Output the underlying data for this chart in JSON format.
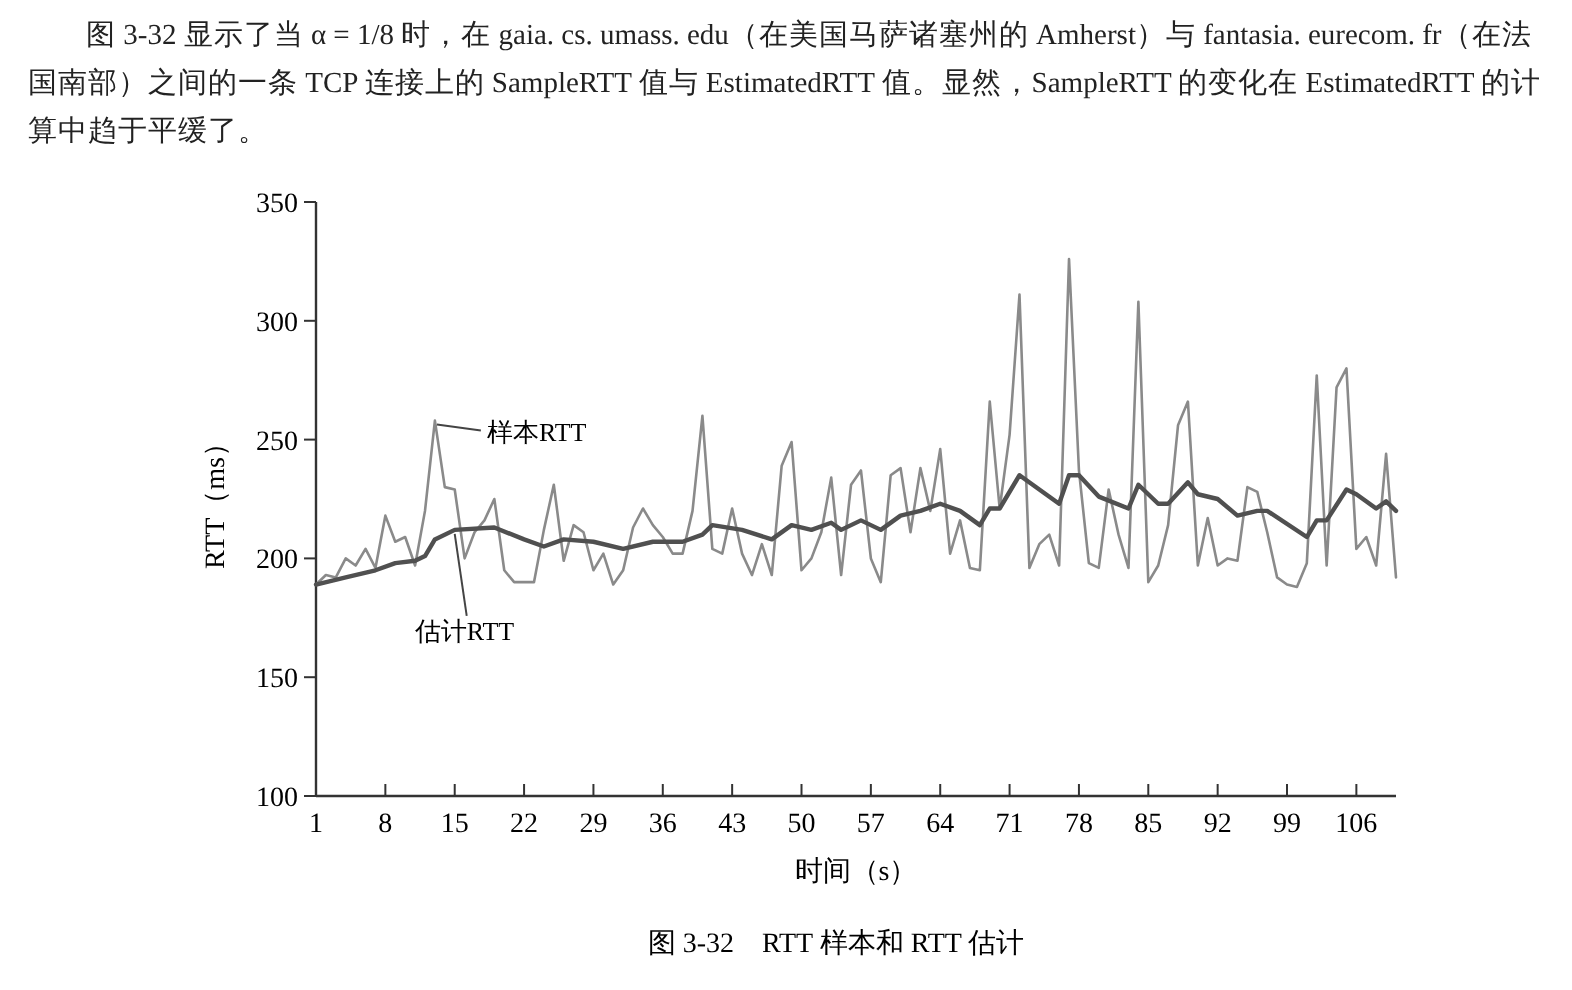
{
  "chart_data": {
    "type": "line",
    "title": "图 3-32　RTT 样本和 RTT 估计",
    "xlabel": "时间（s）",
    "ylabel": "RTT（ms）",
    "annotations": [
      "图 3-32 显示了当 α = 1/8 时，在 gaia. cs. umass. edu（在美国马萨诸塞州的 Amherst）与 fantasia. eurecom. fr（在法国南部）之间的一条 TCP 连接上的 SampleRTT 值与 EstimatedRTT 值。显然，SampleRTT 的变化在 EstimatedRTT 的计算中趋于平缓了。",
      {
        "text": "样本RTT",
        "x": 13,
        "y": 258
      },
      {
        "text": "估计RTT",
        "x": 15,
        "y": 212
      }
    ],
    "series": [
      {
        "color": "#8a8a8a",
        "x": [
          1,
          2,
          3,
          4,
          5,
          6,
          7,
          8,
          9,
          10,
          11,
          12,
          13,
          14,
          15,
          16,
          17,
          18,
          19,
          20,
          21,
          22,
          23,
          24,
          25,
          26,
          27,
          28,
          29,
          30,
          31,
          32,
          33,
          34,
          35,
          36,
          37,
          38,
          39,
          40,
          41,
          42,
          43,
          44,
          45,
          46,
          47,
          48,
          49,
          50,
          51,
          52,
          53,
          54,
          55,
          56,
          57,
          58,
          59,
          60,
          61,
          62,
          63,
          64,
          65,
          66,
          67,
          68,
          69,
          70,
          71,
          72,
          73,
          74,
          75,
          76,
          77,
          78,
          79,
          80,
          81,
          82,
          83,
          84,
          85,
          86,
          87,
          88,
          89,
          90,
          91,
          92,
          93,
          94,
          95,
          96,
          97,
          98,
          99,
          100,
          101,
          102,
          103,
          104,
          105,
          106,
          107,
          108,
          109,
          110
        ],
        "values": [
          189,
          193,
          192,
          200,
          197,
          204,
          196,
          218,
          207,
          209,
          197,
          220,
          258,
          230,
          229,
          200,
          211,
          216,
          225,
          195,
          190,
          190,
          190,
          212,
          231,
          199,
          214,
          211,
          195,
          202,
          189,
          195,
          213,
          221,
          214,
          209,
          202,
          202,
          220,
          260,
          204,
          202,
          221,
          202,
          193,
          206,
          193,
          239,
          249,
          195,
          200,
          211,
          234,
          193,
          231,
          237,
          200,
          190,
          235,
          238,
          211,
          238,
          220,
          246,
          202,
          216,
          196,
          195,
          266,
          221,
          252,
          311,
          196,
          206,
          210,
          197,
          326,
          237,
          198,
          196,
          229,
          210,
          196,
          308,
          190,
          197,
          214,
          256,
          266,
          197,
          217,
          197,
          200,
          199,
          230,
          228,
          211,
          192,
          189,
          188,
          198,
          277,
          197,
          272,
          280,
          204,
          209,
          197,
          244,
          192
        ]
      },
      {
        "color": "#505050",
        "x": [
          1,
          4,
          7,
          9,
          11,
          12,
          13,
          15,
          19,
          22,
          24,
          26,
          29,
          32,
          35,
          38,
          40,
          41,
          44,
          47,
          49,
          51,
          53,
          54,
          56,
          58,
          60,
          62,
          64,
          66,
          68,
          69,
          70,
          72,
          76,
          77,
          78,
          80,
          83,
          84,
          86,
          87,
          89,
          90,
          92,
          94,
          96,
          97,
          101,
          102,
          103,
          105,
          106,
          108,
          109,
          110
        ],
        "values": [
          189,
          192,
          195,
          198,
          199,
          201,
          208,
          212,
          213,
          208,
          205,
          208,
          207,
          204,
          207,
          207,
          210,
          214,
          212,
          208,
          214,
          212,
          215,
          212,
          216,
          212,
          218,
          220,
          223,
          220,
          214,
          221,
          221,
          235,
          223,
          235,
          235,
          226,
          221,
          231,
          223,
          223,
          232,
          227,
          225,
          218,
          220,
          220,
          209,
          216,
          216,
          229,
          227,
          221,
          224,
          220
        ]
      }
    ],
    "xlim": [
      1,
      110
    ],
    "xticks": [
      1,
      8,
      15,
      22,
      29,
      36,
      43,
      50,
      57,
      64,
      71,
      78,
      85,
      92,
      99,
      106
    ],
    "ylim": [
      100,
      350
    ],
    "yticks": [
      100,
      150,
      200,
      250,
      300,
      350
    ],
    "grid": false,
    "marker": "none",
    "line_style": "solid"
  }
}
